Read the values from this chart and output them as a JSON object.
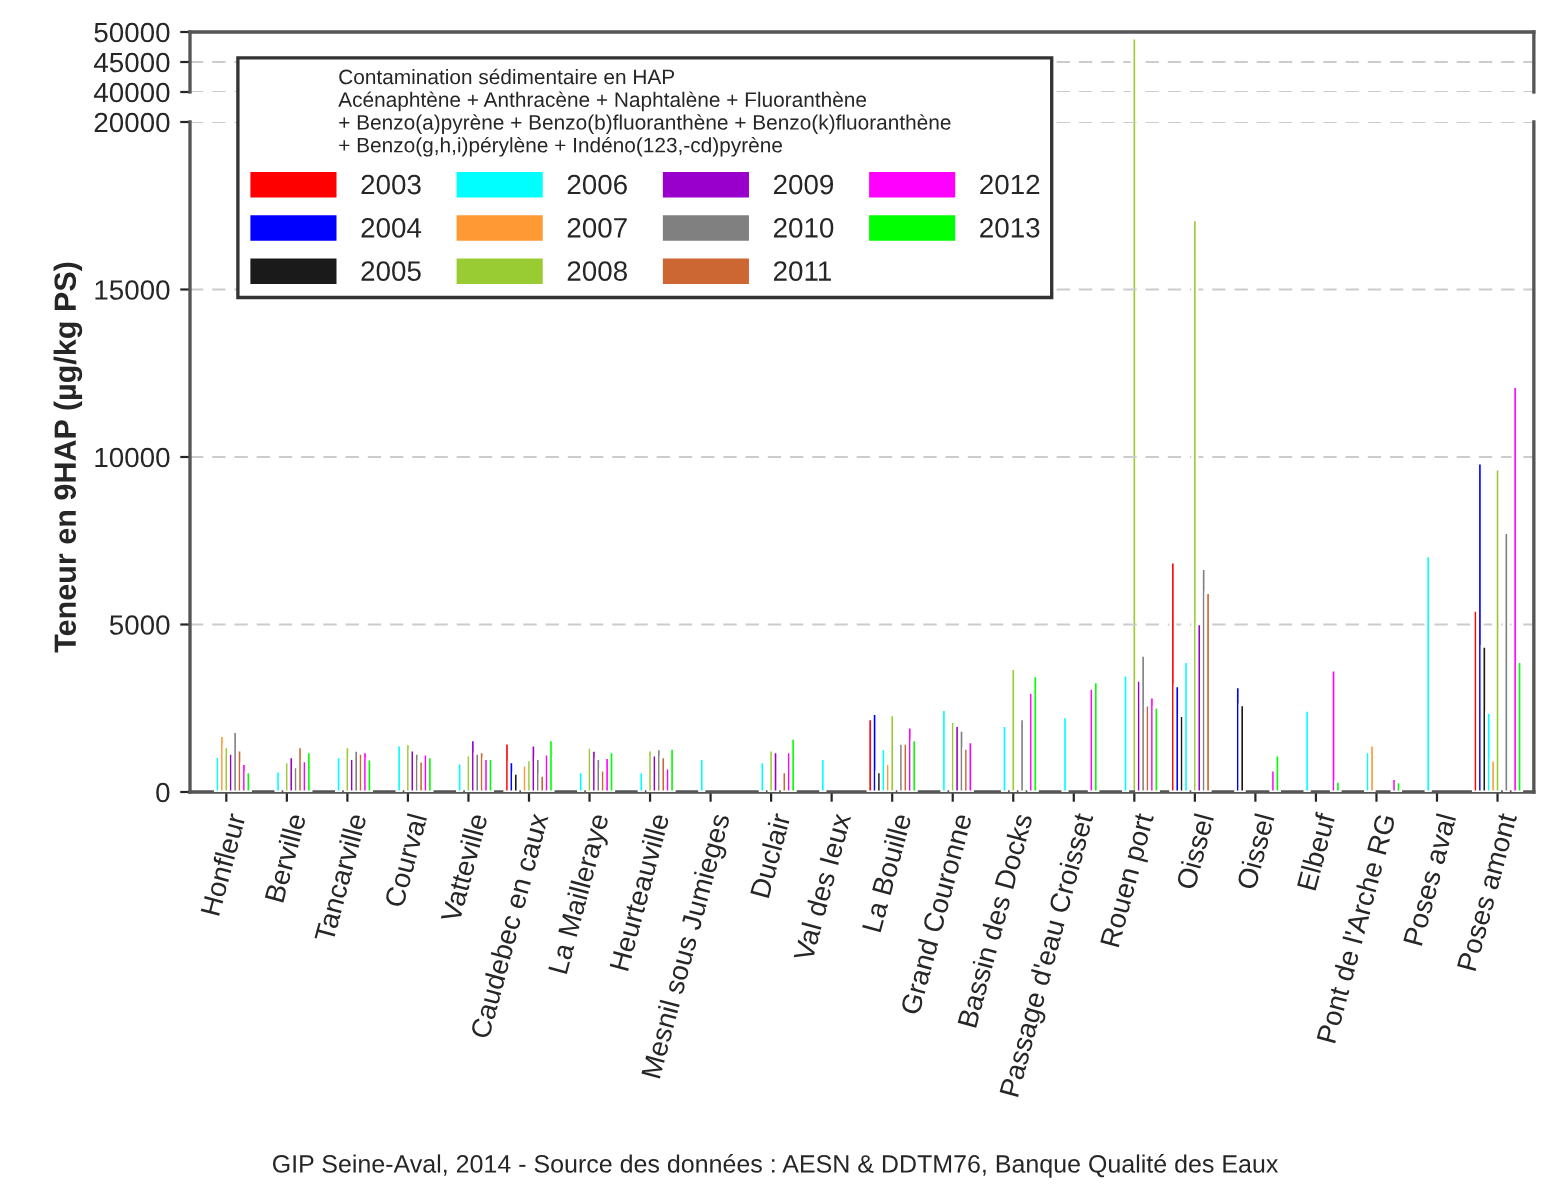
{
  "chart_data": [
    {
      "type": "bar",
      "series": [
        {
          "color": "#ff0000",
          "values": [
            null,
            null,
            null,
            null,
            null,
            null,
            null,
            null,
            null,
            null,
            null,
            null,
            null,
            null,
            null,
            null,
            null,
            null,
            null,
            null,
            null,
            null
          ]
        },
        {
          "color": "#0000ff",
          "values": [
            null,
            null,
            null,
            null,
            null,
            null,
            null,
            null,
            null,
            null,
            null,
            null,
            null,
            null,
            null,
            null,
            null,
            null,
            null,
            null,
            null,
            null
          ]
        },
        {
          "color": "#1a1a1a",
          "values": [
            null,
            null,
            null,
            null,
            null,
            null,
            null,
            null,
            null,
            null,
            null,
            null,
            null,
            null,
            null,
            null,
            null,
            null,
            null,
            null,
            null,
            null
          ]
        },
        {
          "color": "#00ffff",
          "values": [
            null,
            null,
            null,
            null,
            null,
            null,
            null,
            null,
            null,
            null,
            null,
            null,
            null,
            null,
            null,
            null,
            null,
            null,
            null,
            null,
            null,
            null
          ]
        },
        {
          "color": "#ff9933",
          "values": [
            null,
            null,
            null,
            null,
            null,
            null,
            null,
            null,
            null,
            null,
            null,
            null,
            null,
            null,
            null,
            null,
            null,
            null,
            null,
            null,
            null,
            null
          ]
        },
        {
          "color": "#99cc33",
          "values": [
            null,
            null,
            null,
            null,
            null,
            null,
            null,
            null,
            null,
            null,
            null,
            null,
            null,
            null,
            null,
            49000,
            null,
            null,
            null,
            null,
            null,
            null
          ]
        },
        {
          "color": "#9900cc",
          "values": [
            null,
            null,
            null,
            null,
            null,
            null,
            null,
            null,
            null,
            null,
            null,
            null,
            null,
            null,
            null,
            null,
            null,
            null,
            null,
            null,
            null,
            null
          ]
        },
        {
          "color": "#808080",
          "values": [
            null,
            null,
            null,
            null,
            null,
            null,
            null,
            null,
            null,
            null,
            null,
            null,
            null,
            null,
            null,
            null,
            null,
            null,
            null,
            null,
            null,
            null
          ]
        },
        {
          "color": "#cc6633",
          "values": [
            null,
            null,
            null,
            null,
            null,
            null,
            null,
            null,
            null,
            null,
            null,
            null,
            null,
            null,
            null,
            null,
            null,
            null,
            null,
            null,
            null,
            null
          ]
        },
        {
          "color": "#ff00ff",
          "values": [
            null,
            null,
            null,
            null,
            null,
            null,
            null,
            null,
            null,
            null,
            null,
            null,
            null,
            null,
            null,
            null,
            null,
            null,
            null,
            null,
            null,
            null
          ]
        },
        {
          "color": "#00ff00",
          "values": [
            null,
            null,
            null,
            null,
            null,
            null,
            null,
            null,
            null,
            null,
            null,
            null,
            null,
            null,
            null,
            null,
            null,
            null,
            null,
            null,
            null,
            null
          ]
        }
      ],
      "ylim": [
        40000,
        50000
      ],
      "yticks": [
        40000,
        45000,
        50000
      ],
      "grid": "y",
      "tick_labels": "y"
    },
    {
      "type": "bar",
      "legend_title": "Contamination sédimentaire en HAP",
      "subtitle": "Acénaphtène + Anthracène + Naphtalène + Fluoranthène\n+ Benzo(a)pyrène + Benzo(b)fluoranthène + Benzo(k)fluoranthène\n+ Benzo(g,h,i)pérylène + Indéno(123,-cd)pyrène",
      "ylabel": "Teneur en 9HAP (µg/kg PS)",
      "annotations": [
        "GIP Seine-Aval, 2014 - Source des données : AESN & DDTM76, Banque Qualité des Eaux"
      ],
      "categories": [
        "Honfleur",
        "Berville",
        "Tancarville",
        "Courval",
        "Vatteville",
        "Caudebec en caux",
        "La Mailleraye",
        "Heurteauville",
        "Mesnil sous Jumieges",
        "Duclair",
        "Val des Ieux",
        "La Bouille",
        "Grand Couronne",
        "Bassin des Docks",
        "Passage d'eau Croisset",
        "Rouen port",
        "Oissel",
        "Oissel",
        "Elbeuf",
        "Pont de l'Arche RG",
        "Poses aval",
        "Poses amont"
      ],
      "series": [
        {
          "name": "2003",
          "color": "#ff0000",
          "values": [
            null,
            null,
            null,
            null,
            null,
            1460,
            null,
            null,
            null,
            null,
            null,
            2180,
            null,
            null,
            null,
            null,
            6860,
            null,
            null,
            null,
            null,
            5420
          ]
        },
        {
          "name": "2004",
          "color": "#0000ff",
          "values": [
            null,
            null,
            null,
            null,
            null,
            900,
            null,
            null,
            null,
            null,
            null,
            2340,
            null,
            null,
            null,
            null,
            3170,
            3140,
            null,
            null,
            null,
            9820
          ]
        },
        {
          "name": "2005",
          "color": "#1a1a1a",
          "values": [
            null,
            null,
            null,
            null,
            null,
            560,
            null,
            null,
            null,
            null,
            null,
            600,
            null,
            null,
            null,
            null,
            2280,
            2600,
            null,
            null,
            null,
            4350
          ]
        },
        {
          "name": "2006",
          "color": "#00ffff",
          "values": [
            1060,
            620,
            1050,
            1400,
            860,
            null,
            600,
            600,
            1000,
            900,
            1000,
            1290,
            2460,
            1980,
            2240,
            3490,
            3890,
            null,
            2440,
            1200,
            7050,
            2380
          ]
        },
        {
          "name": "2007",
          "color": "#ff9933",
          "values": [
            1680,
            null,
            null,
            null,
            null,
            800,
            null,
            null,
            null,
            null,
            null,
            850,
            null,
            null,
            null,
            null,
            null,
            null,
            null,
            1400,
            null,
            950
          ]
        },
        {
          "name": "2008",
          "color": "#99cc33",
          "values": [
            1350,
            900,
            1350,
            1440,
            1100,
            960,
            1330,
            1250,
            null,
            1250,
            null,
            2300,
            2100,
            3680,
            null,
            null,
            17080,
            null,
            null,
            null,
            null,
            9640
          ]
        },
        {
          "name": "2009",
          "color": "#9900cc",
          "values": [
            1150,
            1050,
            1000,
            1250,
            1560,
            1400,
            1240,
            1100,
            null,
            1200,
            null,
            null,
            1980,
            null,
            null,
            3330,
            5020,
            null,
            null,
            null,
            null,
            null
          ]
        },
        {
          "name": "2010",
          "color": "#808080",
          "values": [
            1800,
            750,
            1240,
            1150,
            1150,
            1000,
            1000,
            1290,
            null,
            null,
            null,
            1450,
            1840,
            2180,
            null,
            4080,
            6670,
            null,
            null,
            null,
            null,
            7740
          ]
        },
        {
          "name": "2011",
          "color": "#cc6633",
          "values": [
            1250,
            1350,
            1150,
            920,
            1200,
            500,
            650,
            1050,
            null,
            600,
            null,
            1450,
            1300,
            null,
            null,
            2590,
            5950,
            null,
            null,
            null,
            null,
            null
          ]
        },
        {
          "name": "2012",
          "color": "#ff00ff",
          "values": [
            850,
            930,
            1200,
            1130,
            1000,
            1130,
            1030,
            710,
            null,
            1200,
            null,
            1940,
            1500,
            2970,
            3090,
            2830,
            null,
            650,
            3640,
            400,
            null,
            12100
          ]
        },
        {
          "name": "2013",
          "color": "#00ff00",
          "values": [
            600,
            1200,
            980,
            1050,
            1000,
            1560,
            1200,
            1300,
            null,
            1600,
            null,
            1560,
            null,
            3470,
            3290,
            2530,
            null,
            1100,
            320,
            300,
            null,
            3890
          ]
        }
      ],
      "ylim": [
        0,
        20000
      ],
      "yticks": [
        0,
        5000,
        10000,
        15000,
        20000
      ],
      "grid": "y",
      "legend": "top left"
    }
  ]
}
